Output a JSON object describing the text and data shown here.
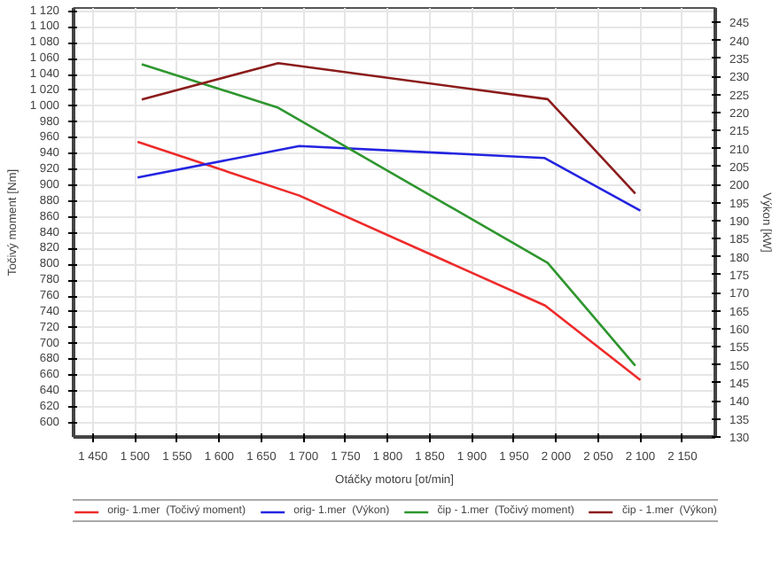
{
  "chart_data": {
    "type": "line",
    "xlabel": "Otáčky motoru [ot/min]",
    "ylabel": "Točivý moment [Nm]",
    "y2label": "Výkon [kW]",
    "xlim": [
      1427,
      2189
    ],
    "xticks": [
      {
        "value": 1450,
        "label": "1 450"
      },
      {
        "value": 1500,
        "label": "1 500"
      },
      {
        "value": 1550,
        "label": "1 550"
      },
      {
        "value": 1600,
        "label": "1 600"
      },
      {
        "value": 1650,
        "label": "1 650"
      },
      {
        "value": 1700,
        "label": "1 700"
      },
      {
        "value": 1750,
        "label": "1 750"
      },
      {
        "value": 1800,
        "label": "1 800"
      },
      {
        "value": 1850,
        "label": "1 850"
      },
      {
        "value": 1900,
        "label": "1 900"
      },
      {
        "value": 1950,
        "label": "1 950"
      },
      {
        "value": 2000,
        "label": "2 000"
      },
      {
        "value": 2050,
        "label": "2 050"
      },
      {
        "value": 2100,
        "label": "2 100"
      },
      {
        "value": 2150,
        "label": "2 150"
      }
    ],
    "ylim": [
      582,
      1124
    ],
    "yticks": [
      600,
      620,
      640,
      660,
      680,
      700,
      720,
      740,
      760,
      780,
      800,
      820,
      840,
      860,
      880,
      900,
      920,
      940,
      960,
      980,
      {
        "value": 1000,
        "label": "1 000"
      },
      {
        "value": 1020,
        "label": "1 020"
      },
      {
        "value": 1040,
        "label": "1 040"
      },
      {
        "value": 1060,
        "label": "1 060"
      },
      {
        "value": 1080,
        "label": "1 080"
      },
      {
        "value": 1100,
        "label": "1 100"
      },
      {
        "value": 1120,
        "label": "1 120"
      }
    ],
    "y2lim": [
      130,
      249
    ],
    "y2ticks": [
      130,
      135,
      140,
      145,
      150,
      155,
      160,
      165,
      170,
      175,
      180,
      185,
      190,
      195,
      200,
      205,
      210,
      215,
      220,
      225,
      230,
      235,
      240,
      245
    ],
    "grid": true,
    "legend": "bottom",
    "series": [
      {
        "name": "orig- 1.mer  (Točivý moment)",
        "color": "#ee2a2a",
        "x": [
          1503,
          1695,
          1987,
          2100
        ],
        "values": [
          955,
          887,
          748,
          654
        ]
      },
      {
        "name": "orig- 1.mer  (Výkon)",
        "color": "#2424e0",
        "axis": "y2",
        "x": [
          1503,
          1695,
          1986,
          2100
        ],
        "values": [
          202,
          210.7,
          207.4,
          192.8
        ]
      },
      {
        "name": "čip - 1.mer  (Točivý moment)",
        "color": "#2e962e",
        "x": [
          1508,
          1670,
          1990,
          2094
        ],
        "values": [
          1053,
          998,
          802,
          672
        ]
      },
      {
        "name": "čip - 1.mer  (Výkon)",
        "color": "#8b1c1c",
        "axis": "y2",
        "x": [
          1508,
          1670,
          1990,
          2094
        ],
        "values": [
          223.6,
          233.7,
          223.7,
          197.5
        ]
      }
    ]
  }
}
